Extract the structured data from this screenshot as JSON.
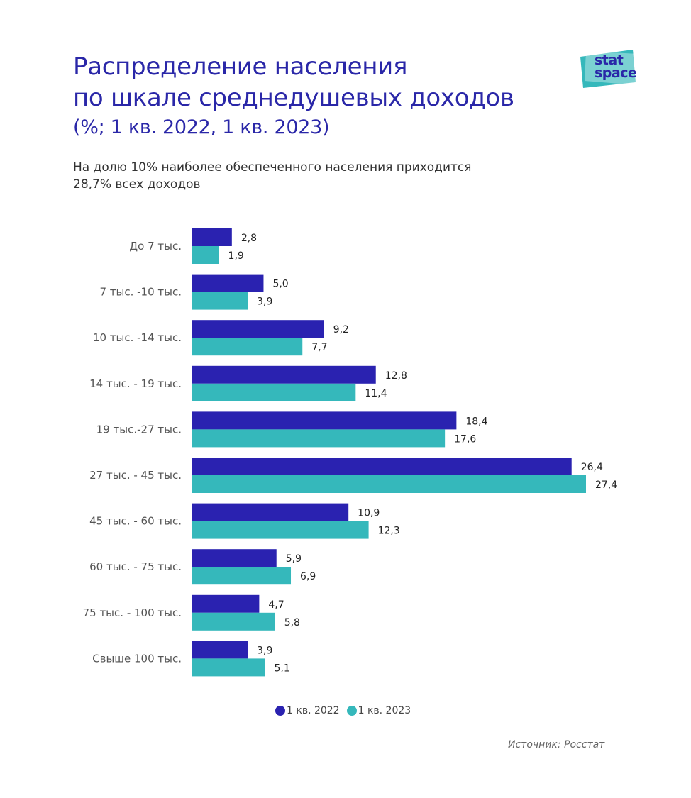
{
  "title": {
    "line1": "Распределение населения",
    "line2": "по шкале среднедушевых доходов",
    "line3": "(%; 1 кв. 2022, 1 кв. 2023)"
  },
  "subtitle": {
    "line1": "На долю 10% наиболее обеспеченного населения приходится",
    "line2": "28,7% всех доходов"
  },
  "logo": {
    "line1": "stat",
    "line2": "space"
  },
  "colors": {
    "series2022": "#2a22b0",
    "series2023": "#35b8bb",
    "title": "#2a27a8"
  },
  "chart_data": {
    "type": "bar",
    "orientation": "horizontal",
    "categories": [
      "До 7 тыс.",
      "7 тыс. -10 тыс.",
      "10 тыс. -14 тыс.",
      "14 тыс. - 19 тыс.",
      "19 тыс.-27 тыс.",
      "27 тыс. - 45 тыс.",
      "45 тыс. - 60 тыс.",
      "60 тыс. - 75 тыс.",
      "75 тыс. - 100 тыс.",
      "Свыше 100 тыс."
    ],
    "series": [
      {
        "name": "1 кв. 2022",
        "values": [
          2.8,
          5.0,
          9.2,
          12.8,
          18.4,
          26.4,
          10.9,
          5.9,
          4.7,
          3.9
        ],
        "labels": [
          "2,8",
          "5,0",
          "9,2",
          "12,8",
          "18,4",
          "26,4",
          "10,9",
          "5,9",
          "4,7",
          "3,9"
        ]
      },
      {
        "name": "1 кв. 2023",
        "values": [
          1.9,
          3.9,
          7.7,
          11.4,
          17.6,
          27.4,
          12.3,
          6.9,
          5.8,
          5.1
        ],
        "labels": [
          "1,9",
          "3,9",
          "7,7",
          "11,4",
          "17,6",
          "27,4",
          "12,3",
          "6,9",
          "5,8",
          "5,1"
        ]
      }
    ],
    "xlim": [
      0,
      27.4
    ],
    "grid": false,
    "legend_position": "bottom-center"
  },
  "source": "Источник: Росстат"
}
